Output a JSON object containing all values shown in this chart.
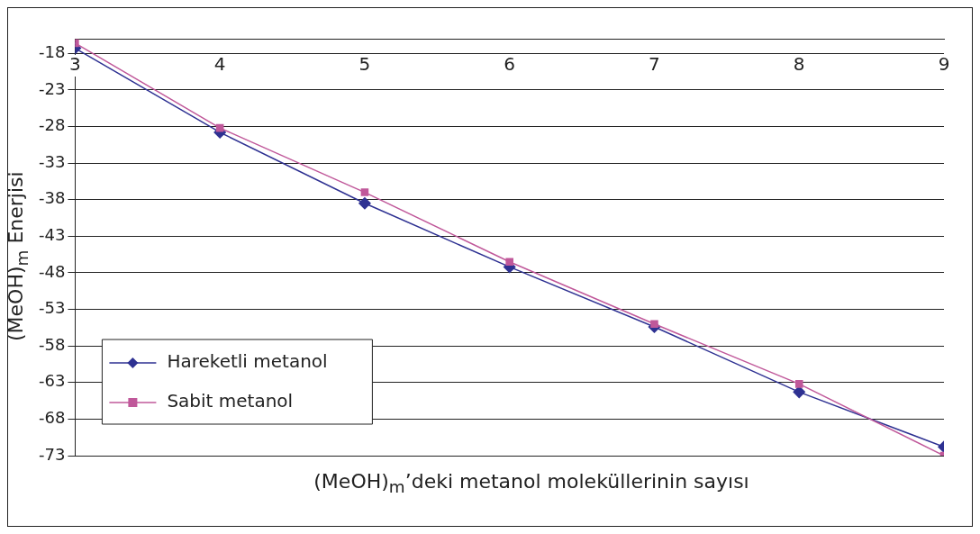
{
  "chart_data": {
    "type": "line",
    "xlabel": "(MeOH)$_{m}$’deki metanol moleküllerinin sayısı",
    "ylabel": "(MeOH)$_{m}$ Enerjisi",
    "x": [
      3,
      4,
      5,
      6,
      7,
      8,
      9
    ],
    "xlim": [
      3,
      9
    ],
    "xticks": [
      3,
      4,
      5,
      6,
      7,
      8,
      9
    ],
    "ylim": [
      -73,
      -16
    ],
    "yticks": [
      -18,
      -23,
      -28,
      -33,
      -38,
      -43,
      -48,
      -53,
      -58,
      -63,
      -68,
      -73
    ],
    "grid": "y",
    "legend": "bottom left",
    "line_style": "solid",
    "series": [
      {
        "name": "Hareketli metanol",
        "color": "#2e3192",
        "marker": "diamond",
        "values": [
          -17.3,
          -28.8,
          -38.5,
          -47.2,
          -55.4,
          -64.3,
          -71.8
        ]
      },
      {
        "name": "Sabit metanol",
        "color": "#c0589a",
        "marker": "square",
        "values": [
          -16.6,
          -28.2,
          -37.0,
          -46.5,
          -55.0,
          -63.2,
          -73.0
        ]
      }
    ]
  }
}
